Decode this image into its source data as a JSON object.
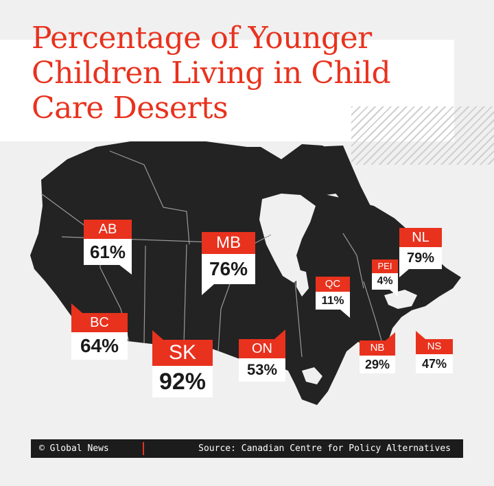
{
  "title": "Percentage of Younger Children Living in Child Care Deserts",
  "colors": {
    "accent": "#e8321e",
    "map": "#232323",
    "background": "#f0f0f0"
  },
  "provinces": [
    {
      "code": "AB",
      "value": "61%"
    },
    {
      "code": "BC",
      "value": "64%"
    },
    {
      "code": "SK",
      "value": "92%"
    },
    {
      "code": "MB",
      "value": "76%"
    },
    {
      "code": "ON",
      "value": "53%"
    },
    {
      "code": "QC",
      "value": "11%"
    },
    {
      "code": "NB",
      "value": "29%"
    },
    {
      "code": "PEI",
      "value": "4%"
    },
    {
      "code": "NS",
      "value": "47%"
    },
    {
      "code": "NL",
      "value": "79%"
    }
  ],
  "footer": {
    "credit": "© Global News",
    "source": "Source: Canadian Centre for Policy Alternatives"
  }
}
